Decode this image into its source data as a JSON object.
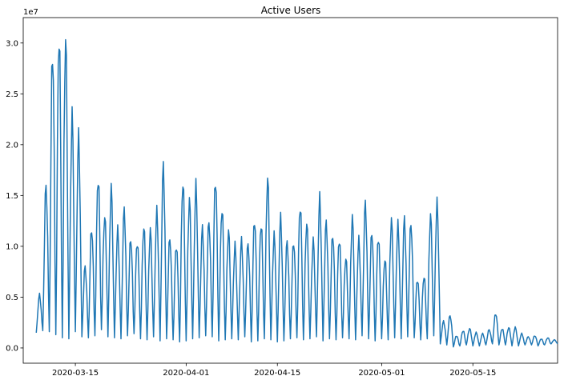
{
  "chart_data": {
    "type": "line",
    "title": "Active Users",
    "xlabel": "",
    "ylabel": "",
    "y_scale_label": "1e7",
    "x_start": "2020-03-09",
    "x_end": "2020-05-27",
    "xlim": [
      "2020-03-07",
      "2020-05-28"
    ],
    "ylim": [
      -1500000,
      32500000
    ],
    "grid": false,
    "line_color": "#1f77b4",
    "x_ticks": [
      {
        "date": "2020-03-15",
        "label": "2020-03-15"
      },
      {
        "date": "2020-04-01",
        "label": "2020-04-01"
      },
      {
        "date": "2020-04-15",
        "label": "2020-04-15"
      },
      {
        "date": "2020-05-01",
        "label": "2020-05-01"
      },
      {
        "date": "2020-05-15",
        "label": "2020-05-15"
      }
    ],
    "y_ticks": [
      {
        "value": 0,
        "label": "0.0"
      },
      {
        "value": 5000000,
        "label": "0.5"
      },
      {
        "value": 10000000,
        "label": "1.0"
      },
      {
        "value": 15000000,
        "label": "1.5"
      },
      {
        "value": 20000000,
        "label": "2.0"
      },
      {
        "value": 25000000,
        "label": "2.5"
      },
      {
        "value": 30000000,
        "label": "3.0"
      }
    ],
    "daily_peaks": [
      5200000,
      16000000,
      29300000,
      31000000,
      30500000,
      22700000,
      20600000,
      8000000,
      11800000,
      16900000,
      13000000,
      15600000,
      11500000,
      13600000,
      10800000,
      10500000,
      12000000,
      11500000,
      13300000,
      17800000,
      10900000,
      10200000,
      16400000,
      14500000,
      15800000,
      11700000,
      12500000,
      16700000,
      13800000,
      11500000,
      10000000,
      10500000,
      10300000,
      12700000,
      12300000,
      16700000,
      11000000,
      12700000,
      10500000,
      10500000,
      14100000,
      12300000,
      10500000,
      14600000,
      12400000,
      11200000,
      10800000,
      8900000,
      12700000,
      10500000,
      14200000,
      11400000,
      11000000,
      8800000,
      12500000,
      12000000,
      12600000,
      12300000,
      6800000,
      7100000,
      13000000,
      14100000,
      2600000,
      3200000,
      1200000,
      1700000,
      1900000,
      1500000,
      1400000,
      1800000,
      3400000,
      1900000,
      2000000,
      2000000,
      1400000,
      1100000,
      1200000,
      900000,
      1000000,
      800000
    ],
    "daily_troughs": [
      1500000,
      1700000,
      1600000,
      1300000,
      1000000,
      900000,
      1600000,
      1100000,
      1000000,
      1200000,
      1800000,
      1100000,
      1000000,
      900000,
      1200000,
      1400000,
      900000,
      800000,
      1100000,
      700000,
      900000,
      800000,
      600000,
      700000,
      900000,
      1000000,
      1200000,
      1100000,
      700000,
      800000,
      900000,
      800000,
      1100000,
      600000,
      700000,
      900000,
      800000,
      600000,
      700000,
      900000,
      1000000,
      800000,
      900000,
      1100000,
      700000,
      900000,
      800000,
      1000000,
      900000,
      800000,
      1200000,
      900000,
      700000,
      900000,
      800000,
      1000000,
      900000,
      1100000,
      1000000,
      800000,
      900000,
      1200000,
      400000,
      300000,
      100000,
      200000,
      300000,
      200000,
      200000,
      300000,
      400000,
      300000,
      300000,
      200000,
      200000,
      300000,
      300000,
      200000,
      300000,
      400000
    ]
  }
}
